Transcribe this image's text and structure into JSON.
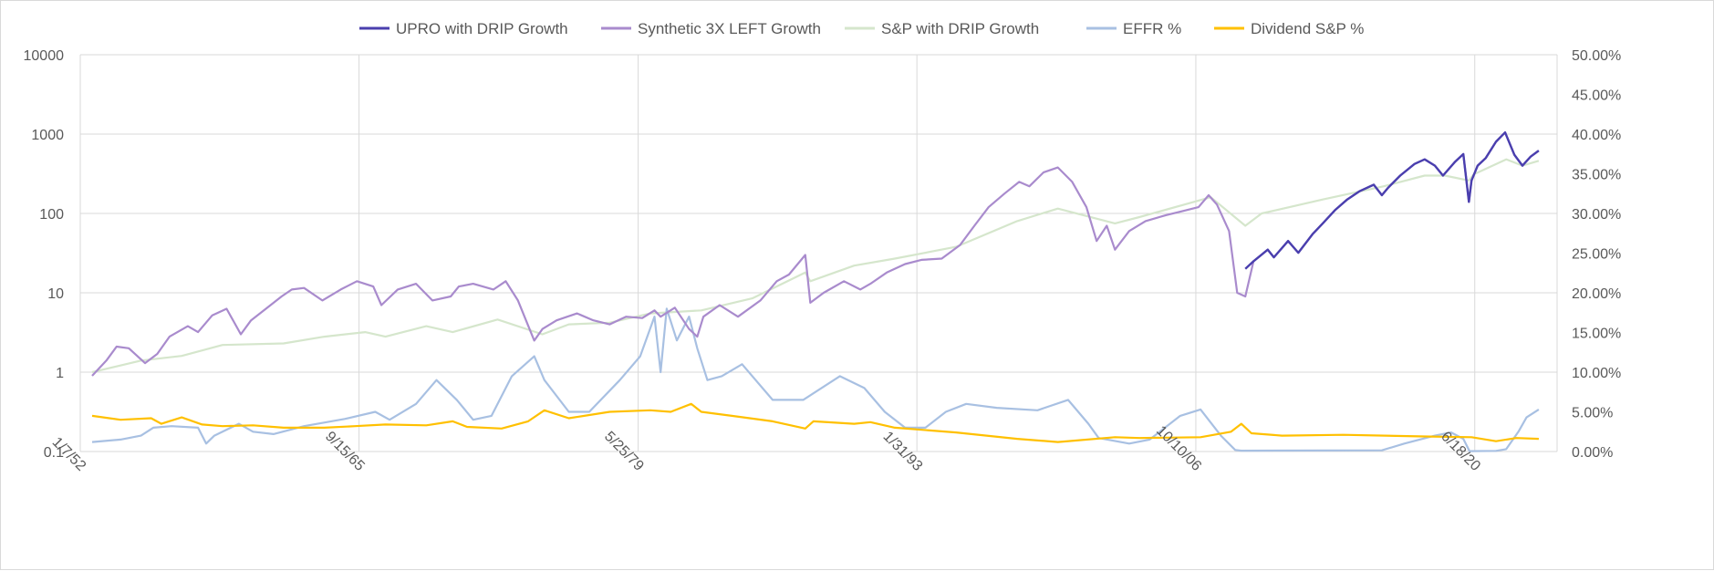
{
  "chart_data": {
    "type": "line",
    "title": "",
    "legend_position": "top",
    "x_axis": {
      "type": "date",
      "range": [
        1952.02,
        2024.5
      ],
      "tick_labels": [
        "1/7/52",
        "9/15/65",
        "5/25/79",
        "1/31/93",
        "10/10/06",
        "6/18/20"
      ],
      "tick_values": [
        1952.02,
        1965.7,
        1979.4,
        1993.08,
        2006.77,
        2020.46
      ]
    },
    "y_axis_left": {
      "scale": "log",
      "range": [
        0.1,
        10000
      ],
      "tick_labels": [
        "10000",
        "1000",
        "100",
        "10",
        "1",
        "0.1"
      ],
      "tick_values": [
        10000,
        1000,
        100,
        10,
        1,
        0.1
      ]
    },
    "y_axis_right": {
      "scale": "linear",
      "range": [
        0,
        50
      ],
      "unit": "%",
      "tick_labels": [
        "50.00%",
        "45.00%",
        "40.00%",
        "35.00%",
        "30.00%",
        "25.00%",
        "20.00%",
        "15.00%",
        "10.00%",
        "5.00%",
        "0.00%"
      ],
      "tick_values": [
        50,
        45,
        40,
        35,
        30,
        25,
        20,
        15,
        10,
        5,
        0
      ]
    },
    "grid": true,
    "series": [
      {
        "name": "UPRO with DRIP Growth",
        "color": "#4a3fae",
        "axis": "left",
        "x": [
          2009.2,
          2009.6,
          2010.3,
          2010.6,
          2011.3,
          2011.8,
          2012.5,
          2013.0,
          2013.6,
          2014.2,
          2014.8,
          2015.5,
          2015.9,
          2016.2,
          2016.8,
          2017.5,
          2018.0,
          2018.5,
          2018.9,
          2019.5,
          2019.9,
          2020.17,
          2020.3,
          2020.6,
          2021.0,
          2021.5,
          2021.95,
          2022.4,
          2022.8,
          2023.2,
          2023.6
        ],
        "y": [
          20,
          25,
          35,
          28,
          45,
          32,
          55,
          75,
          110,
          150,
          190,
          230,
          170,
          210,
          300,
          420,
          480,
          400,
          300,
          450,
          560,
          140,
          260,
          400,
          500,
          800,
          1050,
          550,
          400,
          520,
          620
        ]
      },
      {
        "name": "Synthetic 3X LEFT Growth",
        "color": "#a98bcd",
        "axis": "left",
        "x": [
          1952.6,
          1953.3,
          1953.8,
          1954.4,
          1955.2,
          1955.8,
          1956.4,
          1957.3,
          1957.8,
          1958.5,
          1959.2,
          1959.9,
          1960.4,
          1961.2,
          1961.9,
          1962.4,
          1963.0,
          1963.9,
          1964.8,
          1965.6,
          1966.4,
          1966.8,
          1967.6,
          1968.5,
          1969.3,
          1970.2,
          1970.6,
          1971.3,
          1972.3,
          1972.9,
          1973.5,
          1974.3,
          1974.7,
          1975.4,
          1976.4,
          1977.2,
          1978.0,
          1978.8,
          1979.6,
          1980.2,
          1980.5,
          1981.2,
          1981.9,
          1982.3,
          1982.6,
          1983.4,
          1984.3,
          1985.4,
          1986.2,
          1986.8,
          1987.6,
          1987.85,
          1988.5,
          1989.5,
          1990.3,
          1990.8,
          1991.6,
          1992.5,
          1993.3,
          1994.3,
          1995.2,
          1995.9,
          1996.6,
          1997.4,
          1998.1,
          1998.6,
          1999.3,
          2000.0,
          2000.7,
          2001.4,
          2001.9,
          2002.4,
          2002.8,
          2003.5,
          2004.3,
          2005.3,
          2006.3,
          2006.9,
          2007.4,
          2007.8,
          2008.4,
          2008.8,
          2009.2,
          2009.6,
          2010.3,
          2010.6,
          2011.3,
          2011.8,
          2012.5,
          2013.0,
          2013.6,
          2014.2,
          2014.8,
          2015.5,
          2015.9,
          2016.2,
          2016.8,
          2017.5,
          2018.0,
          2018.5,
          2018.9,
          2019.5,
          2019.9,
          2020.17,
          2020.3,
          2020.6,
          2021.0,
          2021.5,
          2021.95,
          2022.4,
          2022.8,
          2023.2,
          2023.6
        ],
        "y": [
          0.9,
          1.4,
          2.1,
          2.0,
          1.3,
          1.7,
          2.8,
          3.8,
          3.2,
          5.2,
          6.3,
          3.0,
          4.5,
          6.5,
          9.0,
          11.0,
          11.5,
          8.0,
          11.0,
          14.0,
          12.0,
          7.0,
          11.0,
          13.0,
          8.0,
          9.0,
          12.0,
          13.0,
          11.0,
          14.0,
          8.0,
          2.5,
          3.5,
          4.5,
          5.5,
          4.5,
          4.0,
          5.0,
          4.8,
          6.0,
          5.0,
          6.5,
          3.5,
          2.8,
          5.0,
          7.0,
          5.0,
          8.0,
          14.0,
          17.0,
          30.0,
          7.5,
          10.0,
          14.0,
          11.0,
          13.0,
          18.0,
          23.0,
          26.0,
          27.0,
          40.0,
          70.0,
          120.0,
          180.0,
          250.0,
          220.0,
          330.0,
          380.0,
          250.0,
          120.0,
          45.0,
          70.0,
          35.0,
          60.0,
          80.0,
          95.0,
          110.0,
          120.0,
          170.0,
          130.0,
          60.0,
          10.0,
          9.0,
          25.0,
          35.0,
          28.0,
          45.0,
          32.0,
          55.0,
          75.0,
          110.0,
          150.0,
          190.0,
          230.0,
          170.0,
          210.0,
          300.0,
          420.0,
          480.0,
          400.0,
          300.0,
          450.0,
          560.0,
          140.0,
          260.0,
          400.0,
          500.0,
          800.0,
          1050.0,
          550.0,
          400.0,
          520.0,
          620.0
        ]
      },
      {
        "name": "S&P with DRIP Growth",
        "color": "#d5e6cc",
        "axis": "left",
        "x": [
          1952.6,
          1955.0,
          1957.0,
          1959.0,
          1962.0,
          1964.0,
          1966.0,
          1967.0,
          1969.0,
          1970.3,
          1972.5,
          1974.7,
          1976.0,
          1978.0,
          1980.0,
          1982.5,
          1985.0,
          1987.6,
          1987.85,
          1990.0,
          1992.0,
          1995.0,
          1998.0,
          2000.0,
          2002.8,
          2004.0,
          2007.5,
          2009.2,
          2010.0,
          2013.0,
          2016.0,
          2018.0,
          2019.0,
          2020.17,
          2020.4,
          2022.0,
          2022.8,
          2023.6
        ],
        "y": [
          1.0,
          1.4,
          1.6,
          2.2,
          2.3,
          2.8,
          3.2,
          2.8,
          3.8,
          3.2,
          4.6,
          3.0,
          4.0,
          4.2,
          5.5,
          6.0,
          8.5,
          18.0,
          14.0,
          22.0,
          27.0,
          38.0,
          80.0,
          115.0,
          75.0,
          90.0,
          160.0,
          70.0,
          100.0,
          150.0,
          220.0,
          300.0,
          300.0,
          260.0,
          310.0,
          480.0,
          400.0,
          460.0
        ]
      },
      {
        "name": "EFFR %",
        "color": "#a8c0e2",
        "axis": "right",
        "x": [
          1952.6,
          1954.0,
          1955.0,
          1955.6,
          1956.5,
          1957.8,
          1958.2,
          1958.6,
          1959.8,
          1960.5,
          1961.5,
          1963.0,
          1965.0,
          1966.5,
          1967.2,
          1968.5,
          1969.5,
          1970.5,
          1971.3,
          1972.2,
          1973.2,
          1974.3,
          1974.8,
          1976.0,
          1977.0,
          1978.5,
          1979.5,
          1980.2,
          1980.5,
          1980.8,
          1981.3,
          1981.9,
          1982.3,
          1982.8,
          1983.5,
          1984.5,
          1986.0,
          1987.5,
          1989.3,
          1990.5,
          1991.5,
          1992.5,
          1993.5,
          1994.5,
          1995.5,
          1997.0,
          1999.0,
          2000.5,
          2001.5,
          2002.0,
          2003.5,
          2004.5,
          2006.0,
          2007.0,
          2008.0,
          2008.7,
          2009.0,
          2015.9,
          2017.0,
          2018.5,
          2019.3,
          2019.9,
          2020.2,
          2021.5,
          2022.0,
          2022.6,
          2023.0,
          2023.6
        ],
        "y": [
          1.2,
          1.5,
          2.0,
          3.0,
          3.2,
          3.0,
          1.0,
          2.0,
          3.5,
          2.5,
          2.2,
          3.2,
          4.1,
          5.0,
          4.0,
          6.0,
          9.0,
          6.5,
          4.0,
          4.5,
          9.5,
          12.0,
          9.0,
          5.0,
          5.0,
          9.0,
          12.0,
          17.0,
          10.0,
          18.0,
          14.0,
          17.0,
          13.0,
          9.0,
          9.5,
          11.0,
          6.5,
          6.5,
          9.5,
          8.0,
          5.0,
          3.0,
          3.0,
          5.0,
          6.0,
          5.5,
          5.2,
          6.5,
          3.5,
          1.7,
          1.0,
          1.5,
          4.5,
          5.3,
          2.0,
          0.2,
          0.1,
          0.15,
          1.0,
          2.0,
          2.4,
          1.6,
          0.05,
          0.08,
          0.3,
          2.5,
          4.3,
          5.3
        ]
      },
      {
        "name": "Dividend S&P %",
        "color": "#ffc000",
        "axis": "right",
        "x": [
          1952.6,
          1954.0,
          1955.5,
          1956.0,
          1957.0,
          1958.0,
          1959.0,
          1960.5,
          1962.0,
          1964.0,
          1965.5,
          1967.0,
          1969.0,
          1970.3,
          1971.0,
          1972.7,
          1974.0,
          1974.8,
          1976.0,
          1978.0,
          1980.0,
          1981.0,
          1982.0,
          1982.5,
          1984.0,
          1986.0,
          1987.6,
          1988.0,
          1990.0,
          1990.8,
          1992.0,
          1995.0,
          1998.0,
          2000.0,
          2002.8,
          2004.0,
          2007.0,
          2008.5,
          2009.0,
          2009.5,
          2011.0,
          2014.0,
          2018.0,
          2020.3,
          2021.5,
          2022.5,
          2023.6
        ],
        "y": [
          4.5,
          4.0,
          4.2,
          3.5,
          4.3,
          3.4,
          3.2,
          3.3,
          3.0,
          3.0,
          3.2,
          3.4,
          3.3,
          3.8,
          3.1,
          2.9,
          3.8,
          5.2,
          4.2,
          5.0,
          5.2,
          5.0,
          6.0,
          5.0,
          4.5,
          3.8,
          2.9,
          3.8,
          3.5,
          3.7,
          3.0,
          2.4,
          1.6,
          1.2,
          1.8,
          1.7,
          1.8,
          2.5,
          3.5,
          2.3,
          2.0,
          2.1,
          1.9,
          1.8,
          1.3,
          1.7,
          1.6
        ]
      }
    ]
  }
}
